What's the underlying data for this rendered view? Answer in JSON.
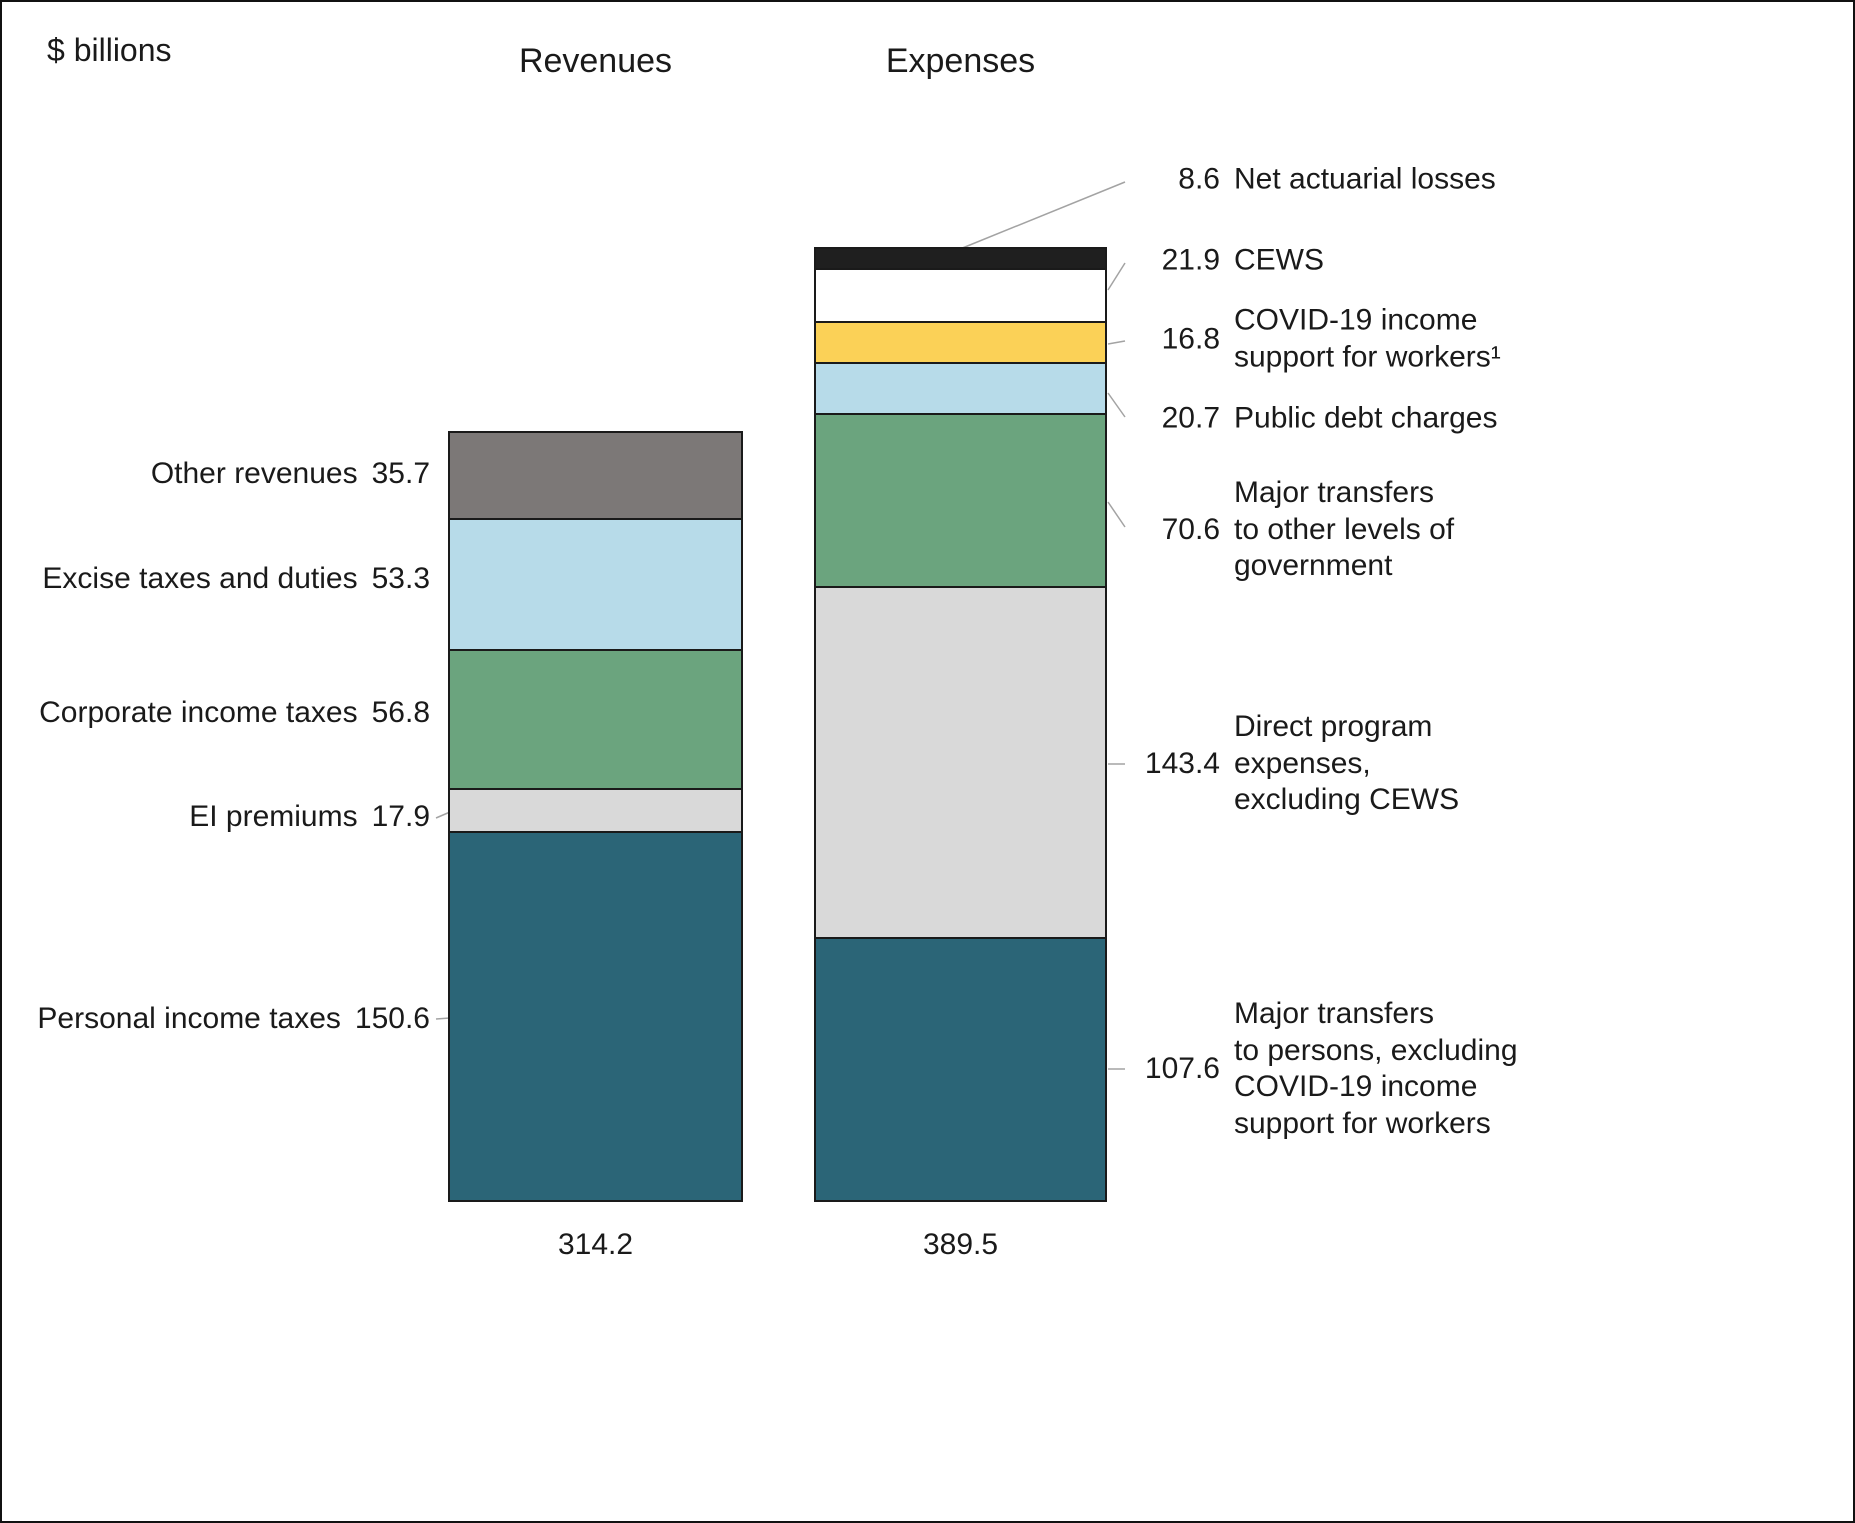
{
  "title": "$ billions",
  "chart_data": {
    "type": "bar",
    "stacked": true,
    "unit_label": "$ billions",
    "legend_position": "none",
    "grid": false,
    "bars": [
      {
        "name": "Revenues",
        "total": 314.2,
        "segments": [
          {
            "label": "Other revenues",
            "value": 35.7,
            "color": "#7c7877"
          },
          {
            "label": "Excise taxes and duties",
            "value": 53.3,
            "color": "#b7dbe9"
          },
          {
            "label": "Corporate income taxes",
            "value": 56.8,
            "color": "#6ba47e"
          },
          {
            "label": "EI premiums",
            "value": 17.9,
            "color": "#d9d9d9"
          },
          {
            "label": "Personal income taxes",
            "value": 150.6,
            "color": "#2b6577"
          }
        ]
      },
      {
        "name": "Expenses",
        "total": 389.5,
        "segments": [
          {
            "label": "Net actuarial losses",
            "value": 8.6,
            "color": "#1f1f1f"
          },
          {
            "label": "CEWS",
            "value": 21.9,
            "color": "#ffffff"
          },
          {
            "label": "COVID-19 income\nsupport for workers¹",
            "value": 16.8,
            "color": "#fbd157"
          },
          {
            "label": "Public debt charges",
            "value": 20.7,
            "color": "#b7dbe9"
          },
          {
            "label": "Major transfers\nto other levels of\ngovernment",
            "value": 70.6,
            "color": "#6ba47e"
          },
          {
            "label": "Direct program\nexpenses,\nexcluding CEWS",
            "value": 143.4,
            "color": "#d9d9d9"
          },
          {
            "label": "Major transfers\nto persons, excluding\nCOVID-19 income\nsupport for workers",
            "value": 107.6,
            "color": "#2b6577"
          }
        ]
      }
    ]
  }
}
